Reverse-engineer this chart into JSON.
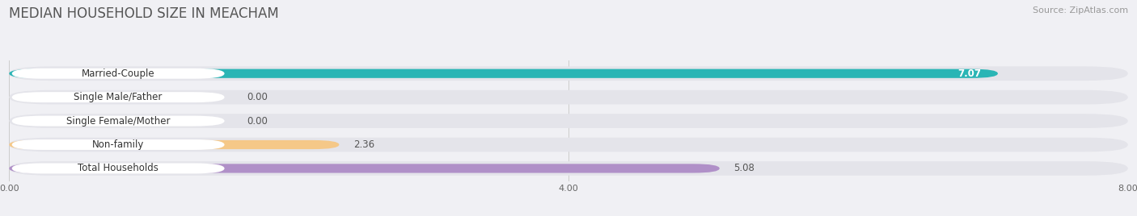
{
  "title": "MEDIAN HOUSEHOLD SIZE IN MEACHAM",
  "source": "Source: ZipAtlas.com",
  "categories": [
    "Married-Couple",
    "Single Male/Father",
    "Single Female/Mother",
    "Non-family",
    "Total Households"
  ],
  "values": [
    7.07,
    0.0,
    0.0,
    2.36,
    5.08
  ],
  "bar_colors": [
    "#2ab5b5",
    "#a0b4e8",
    "#f080a0",
    "#f5c888",
    "#b090c8"
  ],
  "background_color": "#f0f0f4",
  "bar_background_color": "#e4e4ea",
  "row_background_color": "#f0f0f4",
  "xlim": [
    0,
    8.0
  ],
  "xtick_labels": [
    "0.00",
    "4.00",
    "8.00"
  ],
  "xtick_values": [
    0.0,
    4.0,
    8.0
  ],
  "title_fontsize": 12,
  "label_fontsize": 8.5,
  "value_fontsize": 8.5,
  "source_fontsize": 8
}
